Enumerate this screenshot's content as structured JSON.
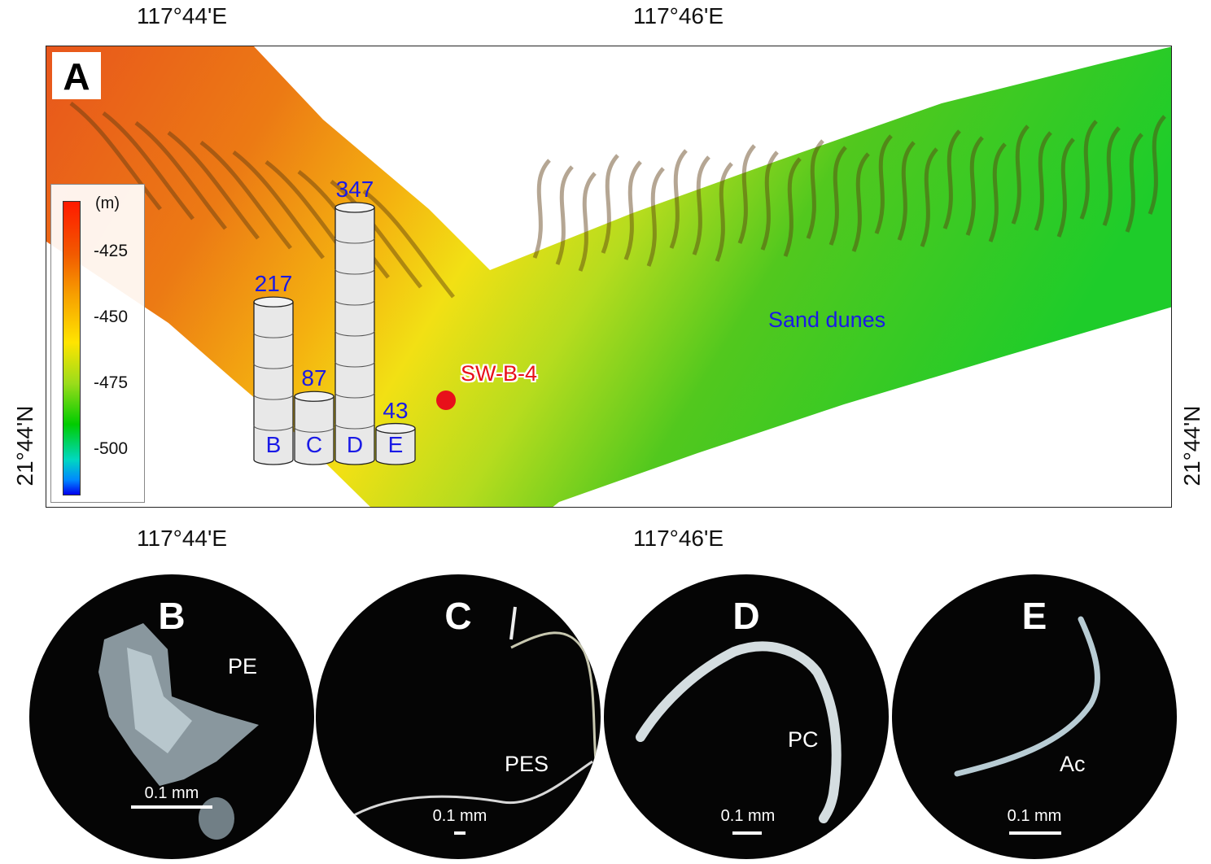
{
  "map": {
    "panel_letter": "A",
    "top_lon_labels": [
      "117°44'E",
      "117°46'E"
    ],
    "bottom_lon_labels": [
      "117°44'E",
      "117°46'E"
    ],
    "left_lat_label": "21°44'N",
    "right_lat_label": "21°44'N",
    "legend": {
      "unit": "(m)",
      "ticks": [
        "-425",
        "-450",
        "-475",
        "-500"
      ]
    },
    "site_label": "SW-B-4",
    "feature_label": "Sand dunes",
    "site_color": "#e8101a"
  },
  "chart_data": {
    "type": "bar",
    "categories": [
      "B",
      "C",
      "D",
      "E"
    ],
    "values": [
      217,
      87,
      347,
      43
    ],
    "value_labels": [
      "217",
      "87",
      "347",
      "43"
    ]
  },
  "micrographs": [
    {
      "letter": "B",
      "polymer": "PE",
      "scale": "0.1 mm"
    },
    {
      "letter": "C",
      "polymer": "PES",
      "scale": "0.1 mm"
    },
    {
      "letter": "D",
      "polymer": "PC",
      "scale": "0.1 mm"
    },
    {
      "letter": "E",
      "polymer": "Ac",
      "scale": "0.1 mm"
    }
  ]
}
